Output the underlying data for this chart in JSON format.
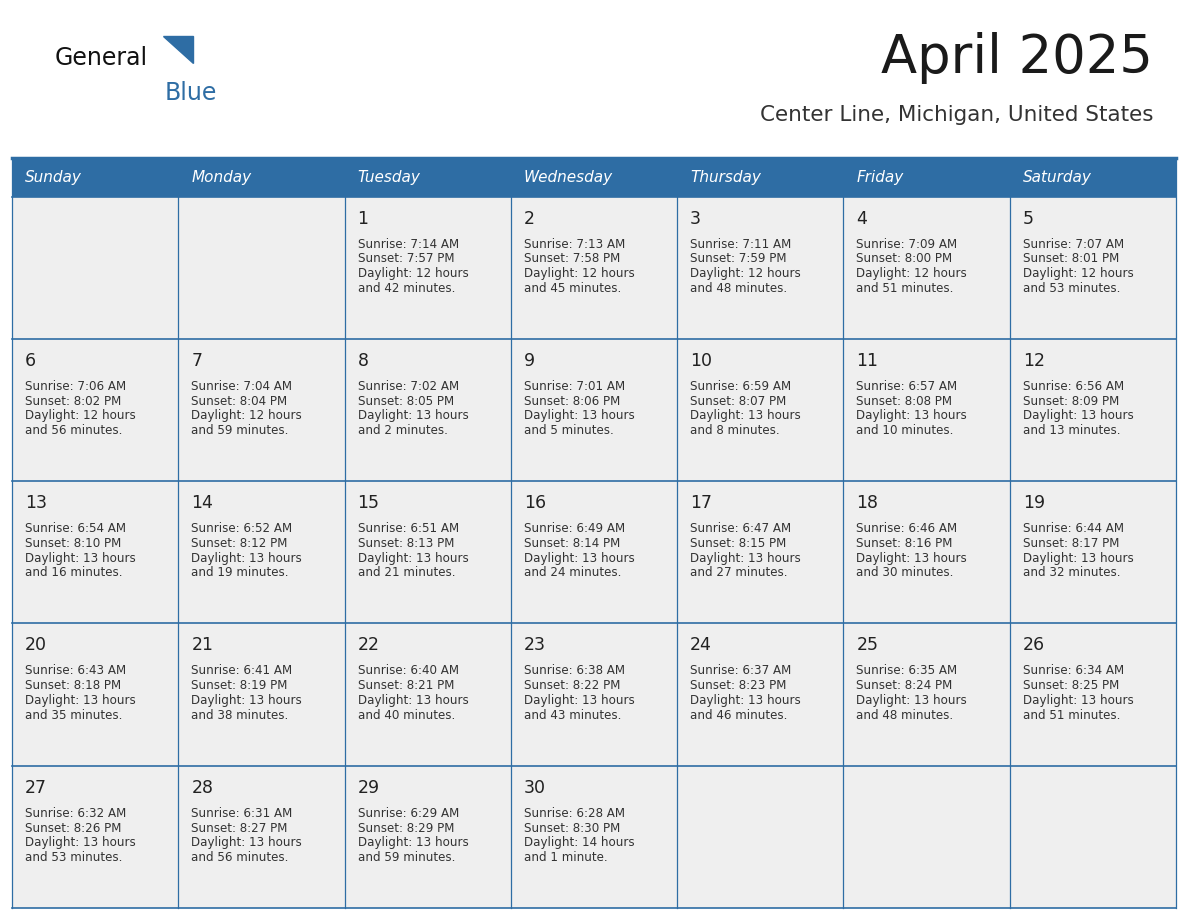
{
  "title": "April 2025",
  "subtitle": "Center Line, Michigan, United States",
  "header_bg_color": "#2E6DA4",
  "header_text_color": "#FFFFFF",
  "cell_bg_color": "#EFEFEF",
  "border_color": "#2E6DA4",
  "day_names": [
    "Sunday",
    "Monday",
    "Tuesday",
    "Wednesday",
    "Thursday",
    "Friday",
    "Saturday"
  ],
  "title_color": "#1a1a1a",
  "subtitle_color": "#333333",
  "day_num_color": "#222222",
  "cell_text_color": "#333333",
  "weeks": [
    [
      {
        "day": "",
        "sunrise": "",
        "sunset": "",
        "daylight": ""
      },
      {
        "day": "",
        "sunrise": "",
        "sunset": "",
        "daylight": ""
      },
      {
        "day": "1",
        "sunrise": "7:14 AM",
        "sunset": "7:57 PM",
        "daylight": "12 hours\nand 42 minutes."
      },
      {
        "day": "2",
        "sunrise": "7:13 AM",
        "sunset": "7:58 PM",
        "daylight": "12 hours\nand 45 minutes."
      },
      {
        "day": "3",
        "sunrise": "7:11 AM",
        "sunset": "7:59 PM",
        "daylight": "12 hours\nand 48 minutes."
      },
      {
        "day": "4",
        "sunrise": "7:09 AM",
        "sunset": "8:00 PM",
        "daylight": "12 hours\nand 51 minutes."
      },
      {
        "day": "5",
        "sunrise": "7:07 AM",
        "sunset": "8:01 PM",
        "daylight": "12 hours\nand 53 minutes."
      }
    ],
    [
      {
        "day": "6",
        "sunrise": "7:06 AM",
        "sunset": "8:02 PM",
        "daylight": "12 hours\nand 56 minutes."
      },
      {
        "day": "7",
        "sunrise": "7:04 AM",
        "sunset": "8:04 PM",
        "daylight": "12 hours\nand 59 minutes."
      },
      {
        "day": "8",
        "sunrise": "7:02 AM",
        "sunset": "8:05 PM",
        "daylight": "13 hours\nand 2 minutes."
      },
      {
        "day": "9",
        "sunrise": "7:01 AM",
        "sunset": "8:06 PM",
        "daylight": "13 hours\nand 5 minutes."
      },
      {
        "day": "10",
        "sunrise": "6:59 AM",
        "sunset": "8:07 PM",
        "daylight": "13 hours\nand 8 minutes."
      },
      {
        "day": "11",
        "sunrise": "6:57 AM",
        "sunset": "8:08 PM",
        "daylight": "13 hours\nand 10 minutes."
      },
      {
        "day": "12",
        "sunrise": "6:56 AM",
        "sunset": "8:09 PM",
        "daylight": "13 hours\nand 13 minutes."
      }
    ],
    [
      {
        "day": "13",
        "sunrise": "6:54 AM",
        "sunset": "8:10 PM",
        "daylight": "13 hours\nand 16 minutes."
      },
      {
        "day": "14",
        "sunrise": "6:52 AM",
        "sunset": "8:12 PM",
        "daylight": "13 hours\nand 19 minutes."
      },
      {
        "day": "15",
        "sunrise": "6:51 AM",
        "sunset": "8:13 PM",
        "daylight": "13 hours\nand 21 minutes."
      },
      {
        "day": "16",
        "sunrise": "6:49 AM",
        "sunset": "8:14 PM",
        "daylight": "13 hours\nand 24 minutes."
      },
      {
        "day": "17",
        "sunrise": "6:47 AM",
        "sunset": "8:15 PM",
        "daylight": "13 hours\nand 27 minutes."
      },
      {
        "day": "18",
        "sunrise": "6:46 AM",
        "sunset": "8:16 PM",
        "daylight": "13 hours\nand 30 minutes."
      },
      {
        "day": "19",
        "sunrise": "6:44 AM",
        "sunset": "8:17 PM",
        "daylight": "13 hours\nand 32 minutes."
      }
    ],
    [
      {
        "day": "20",
        "sunrise": "6:43 AM",
        "sunset": "8:18 PM",
        "daylight": "13 hours\nand 35 minutes."
      },
      {
        "day": "21",
        "sunrise": "6:41 AM",
        "sunset": "8:19 PM",
        "daylight": "13 hours\nand 38 minutes."
      },
      {
        "day": "22",
        "sunrise": "6:40 AM",
        "sunset": "8:21 PM",
        "daylight": "13 hours\nand 40 minutes."
      },
      {
        "day": "23",
        "sunrise": "6:38 AM",
        "sunset": "8:22 PM",
        "daylight": "13 hours\nand 43 minutes."
      },
      {
        "day": "24",
        "sunrise": "6:37 AM",
        "sunset": "8:23 PM",
        "daylight": "13 hours\nand 46 minutes."
      },
      {
        "day": "25",
        "sunrise": "6:35 AM",
        "sunset": "8:24 PM",
        "daylight": "13 hours\nand 48 minutes."
      },
      {
        "day": "26",
        "sunrise": "6:34 AM",
        "sunset": "8:25 PM",
        "daylight": "13 hours\nand 51 minutes."
      }
    ],
    [
      {
        "day": "27",
        "sunrise": "6:32 AM",
        "sunset": "8:26 PM",
        "daylight": "13 hours\nand 53 minutes."
      },
      {
        "day": "28",
        "sunrise": "6:31 AM",
        "sunset": "8:27 PM",
        "daylight": "13 hours\nand 56 minutes."
      },
      {
        "day": "29",
        "sunrise": "6:29 AM",
        "sunset": "8:29 PM",
        "daylight": "13 hours\nand 59 minutes."
      },
      {
        "day": "30",
        "sunrise": "6:28 AM",
        "sunset": "8:30 PM",
        "daylight": "14 hours\nand 1 minute."
      },
      {
        "day": "",
        "sunrise": "",
        "sunset": "",
        "daylight": ""
      },
      {
        "day": "",
        "sunrise": "",
        "sunset": "",
        "daylight": ""
      },
      {
        "day": "",
        "sunrise": "",
        "sunset": "",
        "daylight": ""
      }
    ]
  ]
}
